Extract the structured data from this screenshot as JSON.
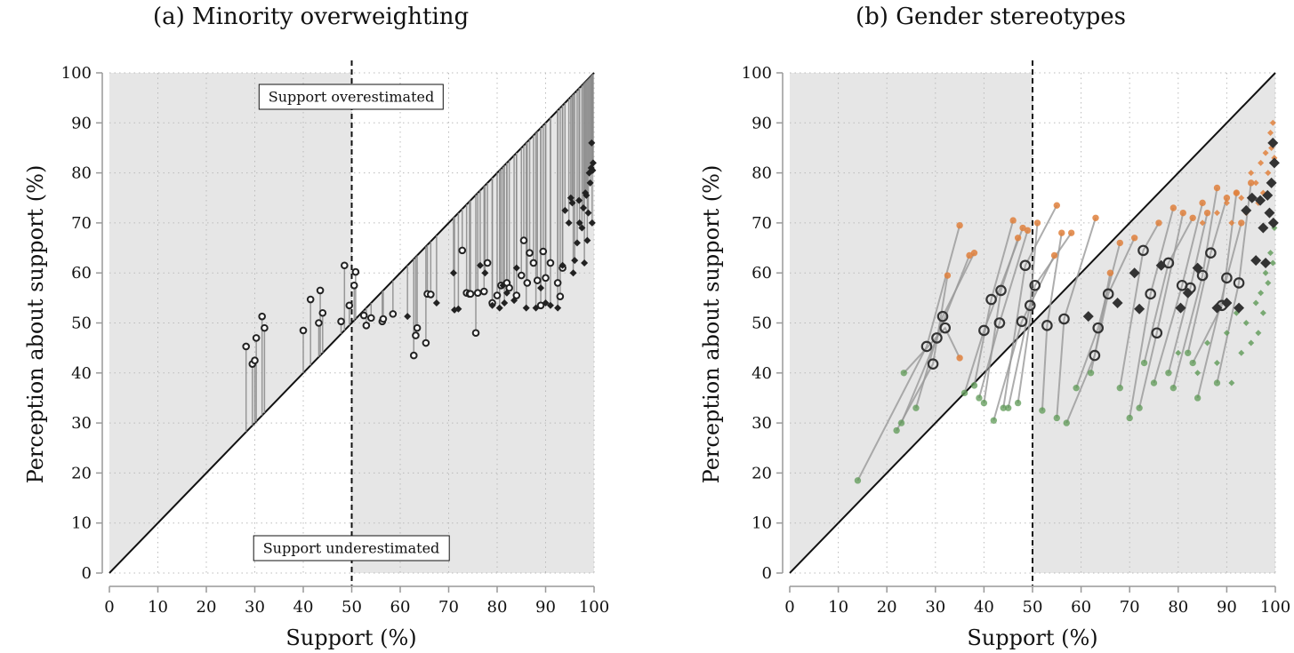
{
  "panels": [
    {
      "title": "(a) Minority overweighting",
      "xlabel": "Support (%)",
      "ylabel": "Perception about support (%)",
      "annot_over": "Support overestimated",
      "annot_under": "Support underestimated"
    },
    {
      "title": "(b) Gender stereotypes",
      "xlabel": "Support (%)",
      "ylabel": "Perception about support (%)"
    }
  ],
  "chart_data": [
    {
      "type": "scatter",
      "title": "(a) Minority overweighting",
      "xlabel": "Support (%)",
      "ylabel": "Perception about support (%)",
      "xlim": [
        0,
        100
      ],
      "ylim": [
        0,
        100
      ],
      "xticks": [
        "0",
        "10",
        "20",
        "30",
        "40",
        "50",
        "60",
        "70",
        "80",
        "90",
        "100"
      ],
      "yticks": [
        "0",
        "10",
        "20",
        "30",
        "40",
        "50",
        "60",
        "70",
        "80",
        "90",
        "100"
      ],
      "grid": true,
      "reference_line": "y = x",
      "threshold_x": 50,
      "colors": {
        "shade": "#e6e6e6",
        "points": "#222222",
        "stems": "#8a8a8a"
      },
      "series": [
        {
          "marker": "circle",
          "points": [
            [
              28.2,
              45.3
            ],
            [
              29.5,
              41.8
            ],
            [
              30.0,
              42.5
            ],
            [
              30.3,
              47
            ],
            [
              31.5,
              51.3
            ],
            [
              32.0,
              49
            ],
            [
              40.0,
              48.5
            ],
            [
              41.5,
              54.7
            ],
            [
              43.2,
              50
            ],
            [
              43.5,
              56.5
            ],
            [
              44,
              52
            ],
            [
              47.8,
              50.3
            ],
            [
              48.5,
              61.5
            ],
            [
              49.5,
              53.5
            ],
            [
              50.5,
              57.5
            ],
            [
              50.8,
              60.2
            ],
            [
              52.5,
              51.5
            ],
            [
              53,
              49.5
            ],
            [
              54,
              51
            ],
            [
              56.3,
              50.3
            ],
            [
              56.5,
              50.8
            ],
            [
              58.5,
              51.8
            ],
            [
              62.8,
              43.5
            ],
            [
              63.2,
              47.5
            ],
            [
              63.5,
              49
            ],
            [
              65.3,
              46
            ],
            [
              65.6,
              55.8
            ],
            [
              66.3,
              55.7
            ],
            [
              72.8,
              64.5
            ],
            [
              73.7,
              56
            ],
            [
              74.3,
              55.8
            ],
            [
              74.5,
              55.8
            ],
            [
              75.6,
              48
            ],
            [
              76,
              56
            ],
            [
              77.3,
              56.3
            ],
            [
              78,
              62
            ],
            [
              79,
              54
            ],
            [
              80,
              55.5
            ],
            [
              80.8,
              57.5
            ],
            [
              82,
              58
            ],
            [
              82.5,
              57
            ],
            [
              84,
              55.5
            ],
            [
              85,
              59.5
            ],
            [
              85.5,
              66.5
            ],
            [
              86.2,
              58
            ],
            [
              86.7,
              64
            ],
            [
              87.5,
              62
            ],
            [
              88.3,
              58.5
            ],
            [
              89,
              53.5
            ],
            [
              89.5,
              64.3
            ],
            [
              90,
              59
            ],
            [
              91,
              62
            ],
            [
              92.5,
              58
            ],
            [
              93,
              55.3
            ],
            [
              93.5,
              61
            ]
          ]
        },
        {
          "marker": "diamond",
          "points": [
            [
              61.5,
              51.3
            ],
            [
              67.5,
              54
            ],
            [
              71,
              60
            ],
            [
              71.2,
              52.6
            ],
            [
              72,
              52.8
            ],
            [
              76.5,
              61.5
            ],
            [
              77.5,
              60
            ],
            [
              79,
              53.5
            ],
            [
              80.5,
              53
            ],
            [
              81.2,
              57.5
            ],
            [
              81.5,
              54
            ],
            [
              82,
              56
            ],
            [
              83.5,
              54.5
            ],
            [
              84,
              61
            ],
            [
              86,
              53
            ],
            [
              88,
              53
            ],
            [
              89,
              57
            ],
            [
              90,
              54
            ],
            [
              91,
              53.5
            ],
            [
              92.5,
              53
            ],
            [
              93.5,
              61.5
            ],
            [
              94,
              72.5
            ],
            [
              94.8,
              70
            ],
            [
              95.2,
              75
            ],
            [
              95.5,
              74
            ],
            [
              95.7,
              60
            ],
            [
              96,
              62.5
            ],
            [
              96.5,
              66
            ],
            [
              96.9,
              74.5
            ],
            [
              97,
              70
            ],
            [
              97.5,
              69
            ],
            [
              97.8,
              73
            ],
            [
              98,
              62
            ],
            [
              98.2,
              76
            ],
            [
              98.4,
              75.5
            ],
            [
              98.6,
              66.5
            ],
            [
              98.8,
              72
            ],
            [
              99,
              80
            ],
            [
              99.2,
              78
            ],
            [
              99.4,
              81
            ],
            [
              99.5,
              86
            ],
            [
              99.6,
              70
            ],
            [
              99.7,
              80.5
            ],
            [
              99.8,
              82
            ]
          ]
        }
      ]
    },
    {
      "type": "scatter",
      "title": "(b) Gender stereotypes",
      "xlabel": "Support (%)",
      "ylabel": "Perception about support (%)",
      "xlim": [
        0,
        100
      ],
      "ylim": [
        0,
        100
      ],
      "xticks": [
        "0",
        "10",
        "20",
        "30",
        "40",
        "50",
        "60",
        "70",
        "80",
        "90",
        "100"
      ],
      "yticks": [
        "0",
        "10",
        "20",
        "30",
        "40",
        "50",
        "60",
        "70",
        "80",
        "90",
        "100"
      ],
      "grid": true,
      "reference_line": "y = x",
      "threshold_x": 50,
      "colors": {
        "shade": "#e6e6e6",
        "overall": "#333333",
        "orange": "#e0813d",
        "green": "#5e9a56",
        "connector": "#999999"
      },
      "triplets": [
        [
          [
            28.2,
            45.3
          ],
          [
            14,
            18.5
          ],
          [
            35,
            69.5
          ]
        ],
        [
          [
            29.5,
            41.8
          ],
          [
            22,
            28.5
          ],
          [
            32.5,
            59.5
          ]
        ],
        [
          [
            30.3,
            47
          ],
          [
            23,
            30
          ],
          [
            37,
            63.5
          ]
        ],
        [
          [
            31.5,
            51.3
          ],
          [
            26,
            33
          ],
          [
            38,
            64
          ]
        ],
        [
          [
            32,
            49
          ],
          [
            23.5,
            40
          ],
          [
            35,
            43
          ]
        ],
        [
          [
            40,
            48.5
          ],
          [
            36,
            36
          ],
          [
            48,
            69
          ]
        ],
        [
          [
            41.5,
            54.7
          ],
          [
            38,
            37.5
          ],
          [
            46,
            70.5
          ]
        ],
        [
          [
            43.2,
            50
          ],
          [
            39,
            35
          ],
          [
            49,
            68.5
          ]
        ],
        [
          [
            43.5,
            56.5
          ],
          [
            40,
            34
          ],
          [
            47,
            67
          ]
        ],
        [
          [
            47.8,
            50.3
          ],
          [
            42,
            30.5
          ],
          [
            54.5,
            63.5
          ]
        ],
        [
          [
            48.5,
            61.5
          ],
          [
            44,
            33
          ],
          [
            55,
            73.5
          ]
        ],
        [
          [
            49.5,
            53.5
          ],
          [
            45,
            33
          ],
          [
            51,
            70
          ]
        ],
        [
          [
            50.5,
            57.5
          ],
          [
            47,
            34
          ],
          [
            58,
            68
          ]
        ],
        [
          [
            53,
            49.5
          ],
          [
            52,
            32.5
          ],
          [
            56,
            68
          ]
        ],
        [
          [
            56.5,
            50.8
          ],
          [
            55,
            31
          ],
          [
            63,
            71
          ]
        ],
        [
          [
            62.8,
            43.5
          ],
          [
            57,
            30
          ],
          [
            66,
            60
          ]
        ],
        [
          [
            63.5,
            49
          ],
          [
            59,
            37
          ],
          [
            68,
            66
          ]
        ],
        [
          [
            65.6,
            55.8
          ],
          [
            62,
            40
          ],
          [
            71,
            67
          ]
        ],
        [
          [
            72.8,
            64.5
          ],
          [
            68,
            37
          ],
          [
            76,
            70
          ]
        ],
        [
          [
            74.3,
            55.8
          ],
          [
            70,
            31
          ],
          [
            79,
            73
          ]
        ],
        [
          [
            75.6,
            48
          ],
          [
            72,
            33
          ],
          [
            81,
            72
          ]
        ],
        [
          [
            78,
            62
          ],
          [
            73,
            42
          ],
          [
            83,
            71
          ]
        ],
        [
          [
            80.8,
            57.5
          ],
          [
            75,
            38
          ],
          [
            85,
            74
          ]
        ],
        [
          [
            82.5,
            57
          ],
          [
            78,
            40
          ],
          [
            86,
            72
          ]
        ],
        [
          [
            85,
            59.5
          ],
          [
            79,
            37
          ],
          [
            88,
            77
          ]
        ],
        [
          [
            86.7,
            64
          ],
          [
            82,
            44
          ],
          [
            90,
            75
          ]
        ],
        [
          [
            89,
            53.5
          ],
          [
            83,
            42
          ],
          [
            92,
            76
          ]
        ],
        [
          [
            90,
            59
          ],
          [
            84,
            35
          ],
          [
            93,
            70
          ]
        ],
        [
          [
            92.5,
            58
          ],
          [
            88,
            38
          ],
          [
            95,
            78
          ]
        ]
      ],
      "overall_diamonds": [
        [
          61.5,
          51.3
        ],
        [
          67.5,
          54
        ],
        [
          71,
          60
        ],
        [
          72,
          52.8
        ],
        [
          76.5,
          61.5
        ],
        [
          80.5,
          53
        ],
        [
          82,
          56
        ],
        [
          84,
          61
        ],
        [
          88,
          53
        ],
        [
          90,
          54
        ],
        [
          92.5,
          53
        ],
        [
          94,
          72.5
        ],
        [
          95.2,
          75
        ],
        [
          96,
          62.5
        ],
        [
          96.9,
          74.5
        ],
        [
          97.5,
          69
        ],
        [
          98,
          62
        ],
        [
          98.4,
          75.5
        ],
        [
          98.8,
          72
        ],
        [
          99.2,
          78
        ],
        [
          99.5,
          86
        ],
        [
          99.6,
          70
        ],
        [
          99.8,
          82
        ]
      ],
      "orange_diamonds": [
        [
          85,
          70
        ],
        [
          88,
          72
        ],
        [
          90,
          74
        ],
        [
          91,
          70
        ],
        [
          92,
          76
        ],
        [
          93,
          75
        ],
        [
          94,
          72
        ],
        [
          95,
          80
        ],
        [
          96,
          78
        ],
        [
          96.5,
          74
        ],
        [
          97,
          82
        ],
        [
          97.5,
          76
        ],
        [
          98,
          84
        ],
        [
          98.5,
          80
        ],
        [
          99,
          88
        ],
        [
          99.2,
          85
        ],
        [
          99.5,
          90
        ],
        [
          99.8,
          83
        ]
      ],
      "green_diamonds": [
        [
          80,
          44
        ],
        [
          84,
          40
        ],
        [
          86,
          46
        ],
        [
          88,
          42
        ],
        [
          90,
          48
        ],
        [
          91,
          38
        ],
        [
          92,
          52
        ],
        [
          93,
          44
        ],
        [
          94,
          50
        ],
        [
          95,
          46
        ],
        [
          96,
          54
        ],
        [
          96.5,
          48
        ],
        [
          97,
          56
        ],
        [
          97.5,
          52
        ],
        [
          98,
          60
        ],
        [
          98.5,
          58
        ],
        [
          99,
          64
        ],
        [
          99.5,
          62
        ],
        [
          99.8,
          69
        ]
      ]
    }
  ]
}
